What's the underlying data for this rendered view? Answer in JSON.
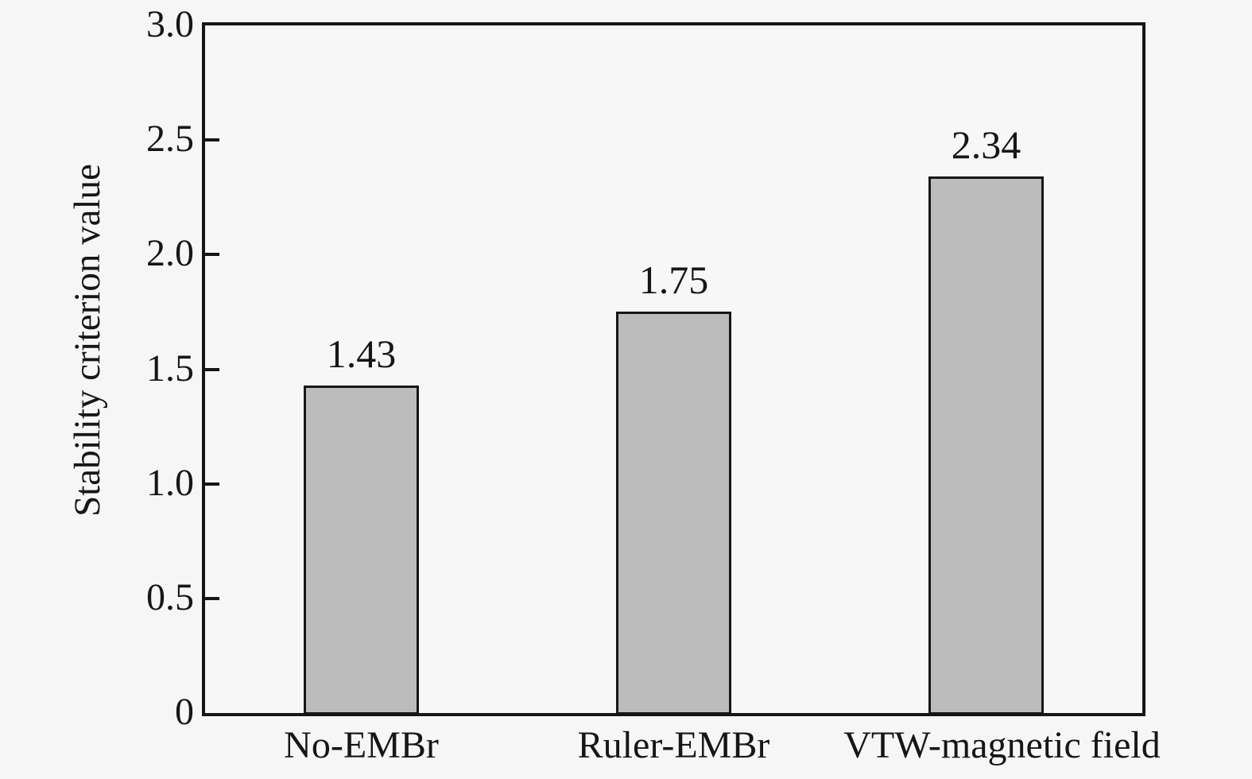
{
  "chart_data": {
    "type": "bar",
    "title": "",
    "categories": [
      "No-EMBr",
      "Ruler-EMBr",
      "VTW-magnetic field"
    ],
    "values": [
      1.43,
      1.75,
      2.34
    ],
    "value_labels": [
      "1.43",
      "1.75",
      "2.34"
    ],
    "xlabel": "",
    "ylabel": "Stability criterion value",
    "ylim": [
      0,
      3.0
    ],
    "yticks": [
      0,
      0.5,
      1.0,
      1.5,
      2.0,
      2.5,
      3.0
    ],
    "ytick_labels": [
      "0",
      "0.5",
      "1.0",
      "1.5",
      "2.0",
      "2.5",
      "3.0"
    ],
    "grid": false,
    "legend": null,
    "colors": {
      "bar_fill": "#bcbcbc",
      "bar_border": "#161616",
      "axis": "#161616",
      "background": "#f6f6f6",
      "text": "#161616"
    }
  }
}
